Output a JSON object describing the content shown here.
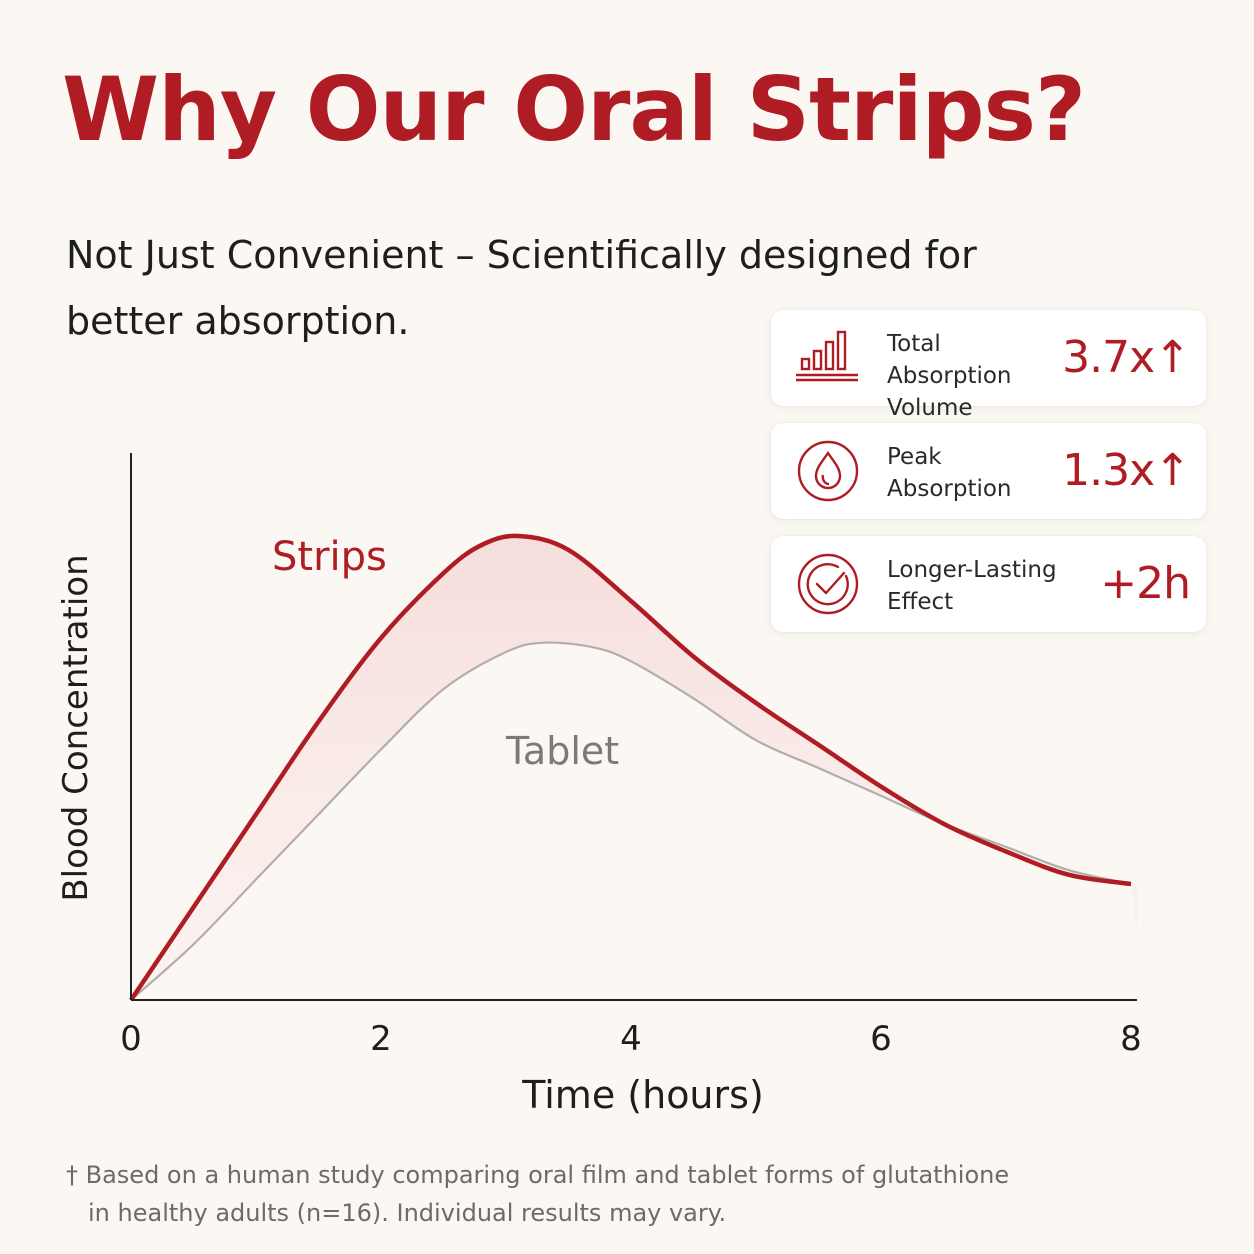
{
  "title": "Why Our Oral Strips?",
  "subtitle": "Not Just Convenient – Scientifically designed for better absorption.",
  "colors": {
    "accent": "#b01c24",
    "tablet_line": "#b3adab",
    "fill": "#f8e4e2",
    "axis": "#222222",
    "background": "#fbf8f4"
  },
  "stats": [
    {
      "label": "Total Absorption Volume",
      "value": "3.7x↑",
      "icon": "bar-chart-icon"
    },
    {
      "label": "Peak Absorption",
      "value": "1.3x↑",
      "icon": "droplet-icon"
    },
    {
      "label": "Longer-Lasting Effect",
      "value": "+2h",
      "icon": "checkmark-circle-icon"
    }
  ],
  "chart_data": {
    "type": "line",
    "xlabel": "Time (hours)",
    "ylabel": "Blood Concentration",
    "xlim": [
      0,
      8
    ],
    "ylim": [
      0,
      1
    ],
    "xticks": [
      0,
      2,
      4,
      6,
      8
    ],
    "grid": false,
    "legend": "inline labels on curves",
    "series": [
      {
        "name": "Strips",
        "x": [
          0,
          0.5,
          1,
          1.5,
          2,
          2.5,
          2.8,
          3.1,
          3.5,
          4,
          4.5,
          5,
          5.5,
          6,
          6.5,
          7,
          7.5,
          8
        ],
        "y": [
          0,
          0.2,
          0.4,
          0.6,
          0.78,
          0.92,
          0.98,
          1.0,
          0.97,
          0.86,
          0.74,
          0.64,
          0.55,
          0.46,
          0.38,
          0.32,
          0.27,
          0.25
        ]
      },
      {
        "name": "Tablet",
        "x": [
          0,
          0.5,
          1,
          1.5,
          2,
          2.5,
          3,
          3.3,
          3.7,
          4,
          4.5,
          5,
          5.5,
          6,
          6.5,
          7,
          7.5,
          8
        ],
        "y": [
          0,
          0.12,
          0.26,
          0.4,
          0.54,
          0.67,
          0.75,
          0.77,
          0.76,
          0.73,
          0.65,
          0.56,
          0.5,
          0.44,
          0.38,
          0.33,
          0.28,
          0.25
        ]
      }
    ]
  },
  "footnote": {
    "line1": "† Based on a human study comparing oral film and tablet forms of glutathione",
    "line2": "in healthy adults (n=16). Individual results may vary."
  }
}
